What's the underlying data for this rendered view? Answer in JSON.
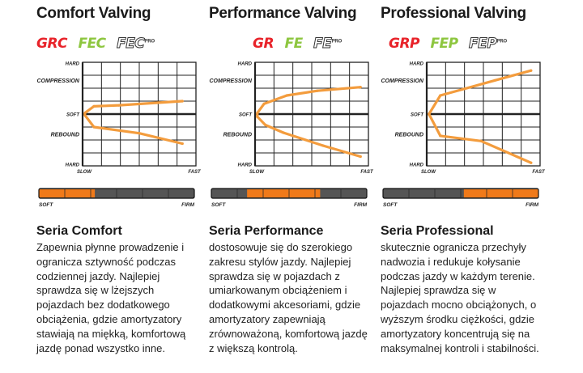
{
  "chart_data": [
    {
      "type": "line",
      "title": "Comfort Valving",
      "logos": [
        {
          "text": "GRC",
          "style": "red"
        },
        {
          "text": "FEC",
          "style": "green"
        },
        {
          "text": "FEC",
          "sup": "PRO",
          "style": "outline"
        }
      ],
      "y_tick_labels": [
        "HARD",
        "COMPRESSION",
        "SOFT",
        "REBOUND",
        "HARD"
      ],
      "x_tick_labels": [
        "SLOW",
        "FAST"
      ],
      "xlim": [
        0,
        1
      ],
      "ylim": [
        -1,
        1
      ],
      "series": [
        {
          "values": [
            [
              0.88,
              0.25
            ],
            [
              0.32,
              0.17
            ],
            [
              0.1,
              0.15
            ],
            [
              0.02,
              0.02
            ],
            [
              0.02,
              -0.02
            ],
            [
              0.1,
              -0.25
            ],
            [
              0.5,
              -0.37
            ],
            [
              0.88,
              -0.57
            ]
          ]
        }
      ],
      "stiffness_bar": {
        "left_label": "SOFT",
        "right_label": "FIRM",
        "range": [
          0.0,
          0.36
        ]
      },
      "series_name": "Seria Comfort",
      "description": "Zapewnia płynne prowadzenie i ogranicza sztywność podczas codziennej jazdy. Najlepiej sprawdza się w lżejszych pojazdach bez dodatkowego obciążenia, gdzie amortyzatory stawiają na miękką, komfortową jazdę ponad wszystko inne."
    },
    {
      "type": "line",
      "title": "Performance Valving",
      "logos": [
        {
          "text": "GR",
          "style": "red"
        },
        {
          "text": "FE",
          "style": "green"
        },
        {
          "text": "FE",
          "sup": "PRO",
          "style": "outline"
        }
      ],
      "y_tick_labels": [
        "HARD",
        "COMPRESSION",
        "SOFT",
        "REBOUND",
        "HARD"
      ],
      "x_tick_labels": [
        "SLOW",
        "FAST"
      ],
      "xlim": [
        0,
        1
      ],
      "ylim": [
        -1,
        1
      ],
      "series": [
        {
          "values": [
            [
              0.93,
              0.52
            ],
            [
              0.55,
              0.45
            ],
            [
              0.28,
              0.36
            ],
            [
              0.08,
              0.2
            ],
            [
              0.02,
              0.02
            ],
            [
              0.02,
              -0.05
            ],
            [
              0.09,
              -0.21
            ],
            [
              0.25,
              -0.36
            ],
            [
              0.6,
              -0.61
            ],
            [
              0.93,
              -0.82
            ]
          ]
        }
      ],
      "stiffness_bar": {
        "left_label": "SOFT",
        "right_label": "FIRM",
        "range": [
          0.23,
          0.7
        ]
      },
      "series_name": "Seria Performance",
      "description": "dostosowuje się do szerokiego zakresu stylów jazdy. Najlepiej sprawdza się w pojazdach z umiarkowanym obciążeniem i dodatkowymi akcesoriami, gdzie amortyzatory zapewniają zrównoważoną, komfortową jazdę z większą kontrolą."
    },
    {
      "type": "line",
      "title": "Professional Valving",
      "logos": [
        {
          "text": "GRP",
          "style": "red"
        },
        {
          "text": "FEP",
          "style": "green"
        },
        {
          "text": "FEP",
          "sup": "PRO",
          "style": "outline"
        }
      ],
      "y_tick_labels": [
        "HARD",
        "COMPRESSION",
        "SOFT",
        "REBOUND",
        "HARD"
      ],
      "x_tick_labels": [
        "SLOW",
        "FAST"
      ],
      "xlim": [
        0,
        1
      ],
      "ylim": [
        -1,
        1
      ],
      "series": [
        {
          "values": [
            [
              0.92,
              0.84
            ],
            [
              0.6,
              0.65
            ],
            [
              0.12,
              0.36
            ],
            [
              0.02,
              0.0
            ],
            [
              0.12,
              -0.42
            ],
            [
              0.48,
              -0.52
            ],
            [
              0.92,
              -0.94
            ]
          ]
        }
      ],
      "stiffness_bar": {
        "left_label": "SOFT",
        "right_label": "FIRM",
        "range": [
          0.52,
          1.0
        ]
      },
      "series_name": "Seria Professional",
      "description": "skutecznie ogranicza przechyły nadwozia i redukuje kołysanie podczas jazdy w każdym terenie. Najlepiej sprawdza się w pojazdach mocno obciążonych, o wyższym środku ciężkości, gdzie amortyzatory koncentrują się na maksymalnej kontroli i stabilności."
    }
  ],
  "colors": {
    "curve": "#f39c3d",
    "bar_dark": "#555555",
    "bar_orange": "#f07a1a",
    "grid": "#222222"
  }
}
